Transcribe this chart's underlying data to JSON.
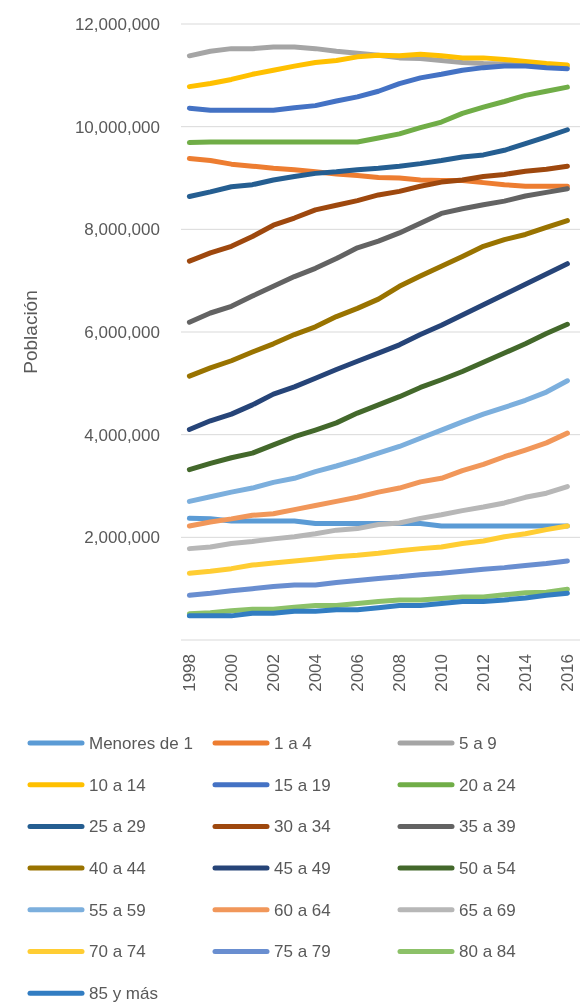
{
  "chart_data": {
    "type": "line",
    "ylabel": "Población",
    "x": [
      1998,
      1999,
      2000,
      2001,
      2002,
      2003,
      2004,
      2005,
      2006,
      2007,
      2008,
      2009,
      2010,
      2011,
      2012,
      2013,
      2014,
      2015,
      2016
    ],
    "xlim": [
      1997.6,
      2016.6
    ],
    "xticks": [
      1998,
      2000,
      2002,
      2004,
      2006,
      2008,
      2010,
      2012,
      2014,
      2016
    ],
    "ylim": [
      0,
      12000000
    ],
    "yticks": [
      {
        "value": 0,
        "label": null
      },
      {
        "value": 2000000,
        "label": "2,000,000"
      },
      {
        "value": 4000000,
        "label": "4,000,000"
      },
      {
        "value": 6000000,
        "label": "6,000,000"
      },
      {
        "value": 8000000,
        "label": "8,000,000"
      },
      {
        "value": 10000000,
        "label": "10,000,000"
      },
      {
        "value": 12000000,
        "label": "12,000,000"
      }
    ],
    "grid": "y",
    "legend": "bottom",
    "marker": "none",
    "line_style": "solid",
    "series": [
      {
        "name": "Menores de 1",
        "color": "#5b9bd5",
        "values": [
          2370000,
          2360000,
          2320000,
          2320000,
          2320000,
          2320000,
          2270000,
          2270000,
          2270000,
          2270000,
          2270000,
          2270000,
          2220000,
          2220000,
          2220000,
          2220000,
          2220000,
          2220000,
          2220000
        ]
      },
      {
        "name": "1 a 4",
        "color": "#ed7d31",
        "values": [
          9380000,
          9340000,
          9270000,
          9230000,
          9190000,
          9160000,
          9120000,
          9080000,
          9050000,
          9010000,
          9000000,
          8960000,
          8950000,
          8950000,
          8910000,
          8870000,
          8840000,
          8840000,
          8840000
        ]
      },
      {
        "name": "5 a 9",
        "color": "#a5a5a5",
        "values": [
          11380000,
          11470000,
          11520000,
          11520000,
          11550000,
          11550000,
          11520000,
          11470000,
          11430000,
          11390000,
          11340000,
          11330000,
          11290000,
          11250000,
          11230000,
          11220000,
          11220000,
          11200000,
          11180000
        ]
      },
      {
        "name": "10 a 14",
        "color": "#ffc000",
        "values": [
          10780000,
          10840000,
          10920000,
          11020000,
          11100000,
          11180000,
          11250000,
          11290000,
          11360000,
          11390000,
          11380000,
          11410000,
          11380000,
          11340000,
          11340000,
          11310000,
          11270000,
          11230000,
          11200000
        ]
      },
      {
        "name": "15 a 19",
        "color": "#4472c4",
        "values": [
          10360000,
          10320000,
          10320000,
          10320000,
          10320000,
          10370000,
          10410000,
          10500000,
          10580000,
          10690000,
          10840000,
          10950000,
          11020000,
          11100000,
          11150000,
          11180000,
          11180000,
          11150000,
          11130000
        ]
      },
      {
        "name": "20 a 24",
        "color": "#70ad47",
        "values": [
          9690000,
          9700000,
          9700000,
          9700000,
          9700000,
          9700000,
          9700000,
          9700000,
          9700000,
          9780000,
          9860000,
          9980000,
          10090000,
          10260000,
          10380000,
          10490000,
          10610000,
          10690000,
          10770000
        ]
      },
      {
        "name": "25 a 29",
        "color": "#255e91",
        "values": [
          8640000,
          8730000,
          8830000,
          8870000,
          8960000,
          9030000,
          9090000,
          9120000,
          9160000,
          9190000,
          9230000,
          9280000,
          9340000,
          9410000,
          9450000,
          9540000,
          9670000,
          9800000,
          9940000
        ]
      },
      {
        "name": "30 a 34",
        "color": "#9e480e",
        "values": [
          7380000,
          7540000,
          7670000,
          7860000,
          8080000,
          8220000,
          8380000,
          8470000,
          8560000,
          8670000,
          8740000,
          8840000,
          8920000,
          8960000,
          9030000,
          9070000,
          9130000,
          9170000,
          9230000
        ]
      },
      {
        "name": "35 a 39",
        "color": "#636363",
        "values": [
          6190000,
          6370000,
          6500000,
          6700000,
          6890000,
          7080000,
          7240000,
          7430000,
          7640000,
          7770000,
          7930000,
          8120000,
          8310000,
          8400000,
          8480000,
          8550000,
          8650000,
          8720000,
          8790000
        ]
      },
      {
        "name": "40 a 44",
        "color": "#997300",
        "values": [
          5140000,
          5300000,
          5440000,
          5610000,
          5770000,
          5950000,
          6100000,
          6300000,
          6460000,
          6640000,
          6890000,
          7090000,
          7280000,
          7470000,
          7670000,
          7800000,
          7900000,
          8040000,
          8170000
        ]
      },
      {
        "name": "45 a 49",
        "color": "#264478",
        "values": [
          4100000,
          4270000,
          4400000,
          4580000,
          4790000,
          4930000,
          5100000,
          5270000,
          5430000,
          5590000,
          5750000,
          5950000,
          6130000,
          6330000,
          6530000,
          6730000,
          6930000,
          7130000,
          7330000
        ]
      },
      {
        "name": "50 a 54",
        "color": "#43682b",
        "values": [
          3320000,
          3440000,
          3550000,
          3640000,
          3800000,
          3960000,
          4090000,
          4230000,
          4420000,
          4580000,
          4740000,
          4920000,
          5070000,
          5230000,
          5410000,
          5590000,
          5770000,
          5970000,
          6150000
        ]
      },
      {
        "name": "55 a 59",
        "color": "#7cafdd",
        "values": [
          2700000,
          2790000,
          2880000,
          2960000,
          3070000,
          3150000,
          3280000,
          3390000,
          3510000,
          3640000,
          3770000,
          3930000,
          4090000,
          4250000,
          4400000,
          4530000,
          4670000,
          4830000,
          5050000
        ]
      },
      {
        "name": "60 a 64",
        "color": "#f1975a",
        "values": [
          2220000,
          2300000,
          2360000,
          2430000,
          2460000,
          2540000,
          2620000,
          2700000,
          2780000,
          2880000,
          2960000,
          3080000,
          3150000,
          3300000,
          3420000,
          3570000,
          3700000,
          3840000,
          4030000
        ]
      },
      {
        "name": "65 a 69",
        "color": "#b7b7b7",
        "values": [
          1780000,
          1810000,
          1880000,
          1920000,
          1970000,
          2010000,
          2070000,
          2140000,
          2170000,
          2250000,
          2280000,
          2370000,
          2440000,
          2520000,
          2590000,
          2670000,
          2780000,
          2860000,
          2990000
        ]
      },
      {
        "name": "70 a 74",
        "color": "#ffcd33",
        "values": [
          1300000,
          1340000,
          1390000,
          1460000,
          1500000,
          1540000,
          1580000,
          1620000,
          1650000,
          1690000,
          1740000,
          1780000,
          1810000,
          1880000,
          1930000,
          2010000,
          2070000,
          2150000,
          2220000
        ]
      },
      {
        "name": "75 a 79",
        "color": "#698ed0",
        "values": [
          870000,
          910000,
          960000,
          1000000,
          1040000,
          1070000,
          1070000,
          1120000,
          1160000,
          1200000,
          1230000,
          1270000,
          1300000,
          1340000,
          1380000,
          1410000,
          1450000,
          1490000,
          1540000
        ]
      },
      {
        "name": "80 a 84",
        "color": "#8cc168",
        "values": [
          510000,
          530000,
          570000,
          600000,
          600000,
          640000,
          670000,
          670000,
          710000,
          750000,
          780000,
          780000,
          810000,
          840000,
          840000,
          880000,
          920000,
          930000,
          990000
        ]
      },
      {
        "name": "85 y más",
        "color": "#327dc2",
        "values": [
          470000,
          470000,
          470000,
          520000,
          520000,
          560000,
          560000,
          590000,
          590000,
          630000,
          670000,
          670000,
          710000,
          750000,
          750000,
          780000,
          820000,
          870000,
          910000
        ]
      }
    ]
  }
}
